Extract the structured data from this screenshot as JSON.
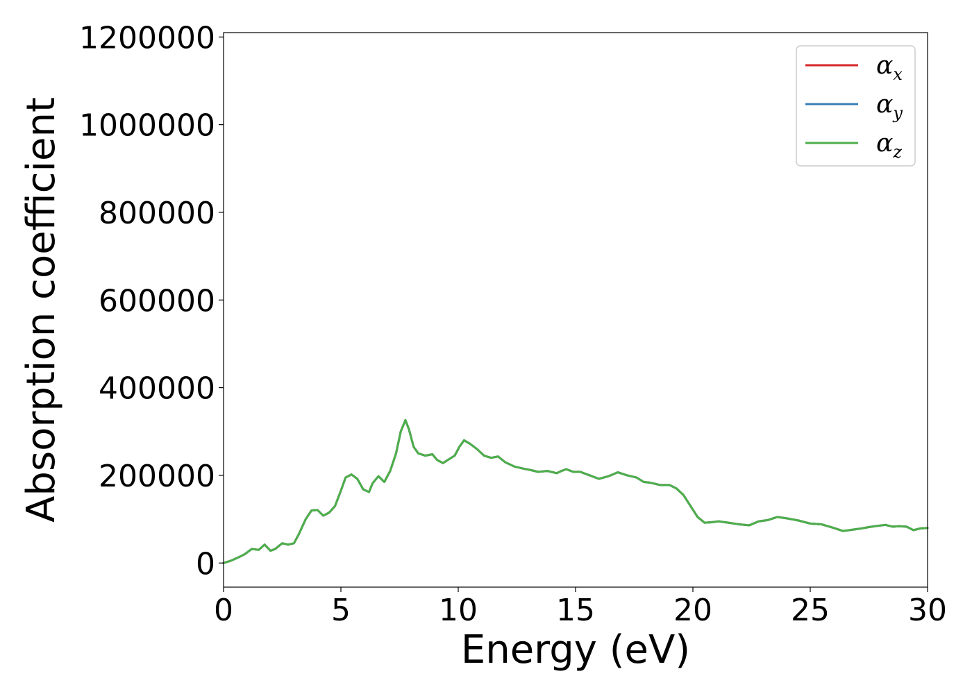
{
  "chart_data": {
    "type": "line",
    "title": "",
    "xlabel": "Energy (eV)",
    "ylabel": "Absorption coefficient",
    "xlim": [
      0,
      30
    ],
    "ylim": [
      -55000,
      1210000
    ],
    "xticks": [
      0,
      5,
      10,
      15,
      20,
      25,
      30
    ],
    "xtick_labels": [
      "0",
      "5",
      "10",
      "15",
      "20",
      "25",
      "30"
    ],
    "yticks": [
      0,
      200000,
      400000,
      600000,
      800000,
      1000000,
      1200000
    ],
    "ytick_labels": [
      "0",
      "200000",
      "400000",
      "600000",
      "800000",
      "1000000",
      "1200000"
    ],
    "grid": false,
    "legend_position": "top-right",
    "legend": [
      {
        "base": "α",
        "sub": "x",
        "color": "#d62728"
      },
      {
        "base": "α",
        "sub": "y",
        "color": "#377eb8"
      },
      {
        "base": "α",
        "sub": "z",
        "color": "#4daf4a"
      }
    ],
    "x": [
      0,
      0.3,
      0.6,
      0.9,
      1.2,
      1.5,
      1.75,
      2.0,
      2.2,
      2.5,
      2.75,
      3.0,
      3.2,
      3.5,
      3.75,
      4.0,
      4.25,
      4.5,
      4.75,
      5.0,
      5.2,
      5.45,
      5.7,
      5.95,
      6.2,
      6.35,
      6.6,
      6.85,
      7.1,
      7.35,
      7.55,
      7.75,
      7.9,
      8.1,
      8.3,
      8.6,
      8.9,
      9.1,
      9.35,
      9.55,
      9.85,
      10.05,
      10.25,
      10.5,
      10.8,
      11.1,
      11.4,
      11.7,
      12.0,
      12.4,
      12.8,
      13.1,
      13.4,
      13.8,
      14.2,
      14.4,
      14.6,
      14.9,
      15.2,
      15.6,
      16.0,
      16.4,
      16.8,
      17.2,
      17.6,
      17.9,
      18.2,
      18.6,
      19.0,
      19.3,
      19.6,
      19.9,
      20.2,
      20.5,
      20.8,
      21.1,
      21.5,
      22.0,
      22.4,
      22.8,
      23.2,
      23.6,
      24.0,
      24.5,
      25.0,
      25.5,
      26.0,
      26.4,
      26.8,
      27.2,
      27.5,
      27.9,
      28.2,
      28.5,
      28.8,
      29.1,
      29.4,
      29.7,
      30.0
    ],
    "series": [
      {
        "name": "α_x",
        "color": "#d62728",
        "values": [
          0,
          5000,
          12000,
          20000,
          32000,
          30000,
          42000,
          28000,
          32000,
          45000,
          42000,
          45000,
          65000,
          100000,
          120000,
          121000,
          108000,
          115000,
          130000,
          165000,
          195000,
          202000,
          192000,
          168000,
          162000,
          182000,
          198000,
          185000,
          210000,
          250000,
          300000,
          326000,
          305000,
          265000,
          250000,
          245000,
          248000,
          235000,
          228000,
          235000,
          245000,
          265000,
          280000,
          272000,
          260000,
          245000,
          240000,
          243000,
          230000,
          220000,
          215000,
          212000,
          208000,
          210000,
          205000,
          210000,
          214000,
          208000,
          208000,
          200000,
          192000,
          198000,
          207000,
          200000,
          195000,
          185000,
          183000,
          178000,
          178000,
          170000,
          155000,
          130000,
          105000,
          92000,
          93000,
          95000,
          92000,
          88000,
          86000,
          95000,
          98000,
          105000,
          102000,
          97000,
          90000,
          88000,
          80000,
          73000,
          76000,
          79000,
          82000,
          85000,
          87000,
          83000,
          84000,
          83000,
          75000,
          79000,
          80000
        ]
      },
      {
        "name": "α_y",
        "color": "#377eb8",
        "values": [
          0,
          5000,
          12000,
          20000,
          32000,
          30000,
          42000,
          28000,
          32000,
          45000,
          42000,
          45000,
          65000,
          100000,
          120000,
          121000,
          108000,
          115000,
          130000,
          165000,
          195000,
          202000,
          192000,
          168000,
          162000,
          182000,
          198000,
          185000,
          210000,
          250000,
          300000,
          326000,
          305000,
          265000,
          250000,
          245000,
          248000,
          235000,
          228000,
          235000,
          245000,
          265000,
          280000,
          272000,
          260000,
          245000,
          240000,
          243000,
          230000,
          220000,
          215000,
          212000,
          208000,
          210000,
          205000,
          210000,
          214000,
          208000,
          208000,
          200000,
          192000,
          198000,
          207000,
          200000,
          195000,
          185000,
          183000,
          178000,
          178000,
          170000,
          155000,
          130000,
          105000,
          92000,
          93000,
          95000,
          92000,
          88000,
          86000,
          95000,
          98000,
          105000,
          102000,
          97000,
          90000,
          88000,
          80000,
          73000,
          76000,
          79000,
          82000,
          85000,
          87000,
          83000,
          84000,
          83000,
          75000,
          79000,
          80000
        ]
      },
      {
        "name": "α_z",
        "color": "#4daf4a",
        "values": [
          0,
          5000,
          12000,
          20000,
          32000,
          30000,
          42000,
          28000,
          32000,
          45000,
          42000,
          45000,
          65000,
          100000,
          120000,
          121000,
          108000,
          115000,
          130000,
          165000,
          195000,
          202000,
          192000,
          168000,
          162000,
          182000,
          198000,
          185000,
          210000,
          250000,
          300000,
          326000,
          305000,
          265000,
          250000,
          245000,
          248000,
          235000,
          228000,
          235000,
          245000,
          265000,
          280000,
          272000,
          260000,
          245000,
          240000,
          243000,
          230000,
          220000,
          215000,
          212000,
          208000,
          210000,
          205000,
          210000,
          214000,
          208000,
          208000,
          200000,
          192000,
          198000,
          207000,
          200000,
          195000,
          185000,
          183000,
          178000,
          178000,
          170000,
          155000,
          130000,
          105000,
          92000,
          93000,
          95000,
          92000,
          88000,
          86000,
          95000,
          98000,
          105000,
          102000,
          97000,
          90000,
          88000,
          80000,
          73000,
          76000,
          79000,
          82000,
          85000,
          87000,
          83000,
          84000,
          83000,
          75000,
          79000,
          80000
        ]
      }
    ]
  }
}
